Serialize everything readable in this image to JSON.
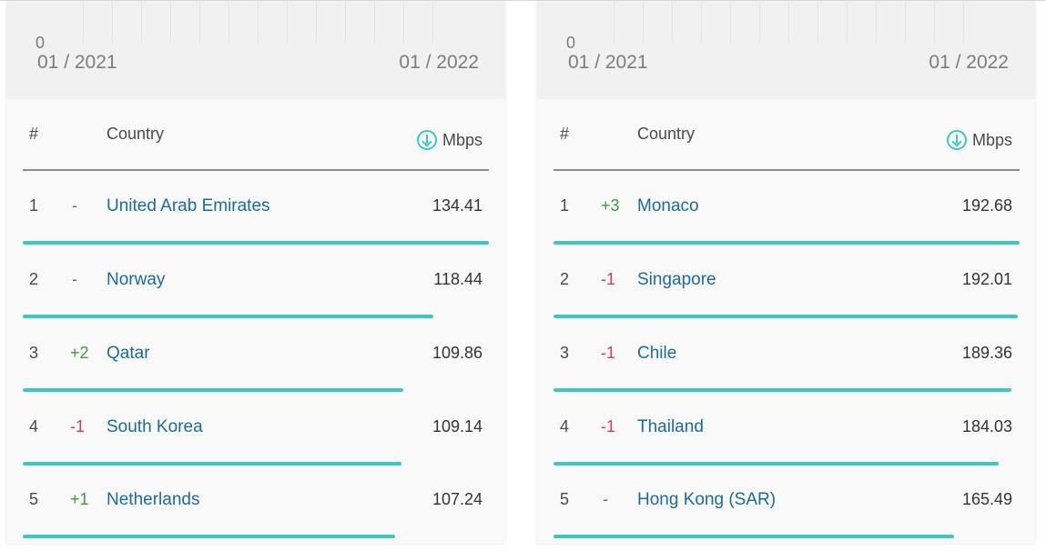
{
  "panels": [
    {
      "zero_label": "0",
      "date_start": "01 / 2021",
      "date_end": "01 / 2022",
      "headers": {
        "rank": "#",
        "country": "Country",
        "speed_unit": "Mbps"
      },
      "speed_icon": "download-icon",
      "rows": [
        {
          "rank": "1",
          "change": "-",
          "change_type": "same",
          "country": "United Arab Emirates",
          "value": "134.41"
        },
        {
          "rank": "2",
          "change": "-",
          "change_type": "same",
          "country": "Norway",
          "value": "118.44"
        },
        {
          "rank": "3",
          "change": "+2",
          "change_type": "up",
          "country": "Qatar",
          "value": "109.86"
        },
        {
          "rank": "4",
          "change": "-1",
          "change_type": "down",
          "country": "South Korea",
          "value": "109.14"
        },
        {
          "rank": "5",
          "change": "+1",
          "change_type": "up",
          "country": "Netherlands",
          "value": "107.24"
        }
      ]
    },
    {
      "zero_label": "0",
      "date_start": "01 / 2021",
      "date_end": "01 / 2022",
      "headers": {
        "rank": "#",
        "country": "Country",
        "speed_unit": "Mbps"
      },
      "speed_icon": "download-icon",
      "rows": [
        {
          "rank": "1",
          "change": "+3",
          "change_type": "up",
          "country": "Monaco",
          "value": "192.68"
        },
        {
          "rank": "2",
          "change": "-1",
          "change_type": "down",
          "country": "Singapore",
          "value": "192.01"
        },
        {
          "rank": "3",
          "change": "-1",
          "change_type": "down",
          "country": "Chile",
          "value": "189.36"
        },
        {
          "rank": "4",
          "change": "-1",
          "change_type": "down",
          "country": "Thailand",
          "value": "184.03"
        },
        {
          "rank": "5",
          "change": "-",
          "change_type": "same",
          "country": "Hong Kong (SAR)",
          "value": "165.49"
        }
      ]
    }
  ],
  "colors": {
    "bar": "#3cc8c0",
    "link": "#1a6aa0",
    "up": "#3d9a3d",
    "down": "#d33a5a"
  }
}
